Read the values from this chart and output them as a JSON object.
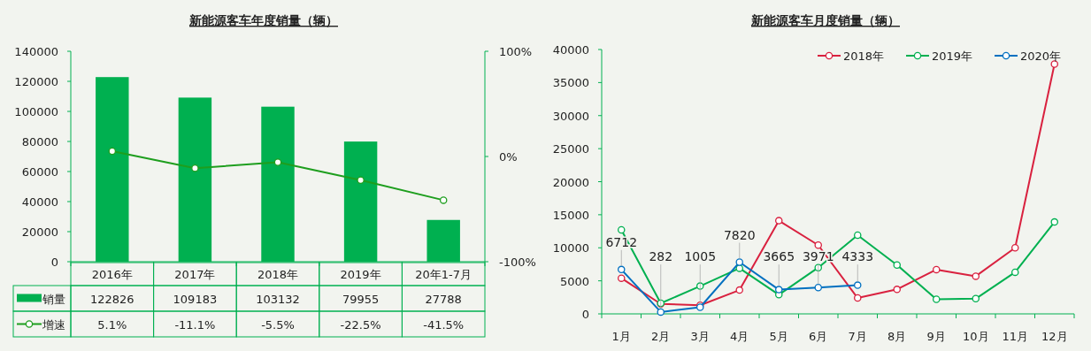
{
  "chart_data": [
    {
      "type": "bar",
      "title": "新能源客车年度销量（辆）",
      "categories": [
        "2016年",
        "2017年",
        "2018年",
        "2019年",
        "20年1-7月"
      ],
      "series": [
        {
          "name": "销量",
          "color": "#00b050",
          "values": [
            122826,
            109183,
            103132,
            79955,
            27788
          ]
        },
        {
          "name": "增速",
          "type": "line",
          "axis": "y2",
          "color": "#1e9e1e",
          "values": [
            5.1,
            -11.1,
            -5.5,
            -22.5,
            -41.5
          ],
          "value_labels": [
            "5.1%",
            "-11.1%",
            "-5.5%",
            "-22.5%",
            "-41.5%"
          ]
        }
      ],
      "ylim": [
        0,
        140000
      ],
      "yticks": [
        0,
        20000,
        40000,
        60000,
        80000,
        100000,
        120000,
        140000
      ],
      "y2lim": [
        -100,
        100
      ],
      "y2ticks": [
        {
          "value": -100,
          "label": "-100%"
        },
        {
          "value": 0,
          "label": "0%"
        },
        {
          "value": 100,
          "label": "100%"
        }
      ],
      "data_labels": true,
      "legend": "bottom left",
      "marker": "circle"
    },
    {
      "type": "line",
      "title": "新能源客车月度销量（辆）",
      "categories": [
        "1月",
        "2月",
        "3月",
        "4月",
        "5月",
        "6月",
        "7月",
        "8月",
        "9月",
        "10月",
        "11月",
        "12月"
      ],
      "series": [
        {
          "name": "2018年",
          "color": "#d9213f",
          "values": [
            5400,
            1500,
            1300,
            3600,
            14100,
            10400,
            2400,
            3700,
            6700,
            5700,
            10000,
            37800
          ]
        },
        {
          "name": "2019年",
          "color": "#00b050",
          "values": [
            12700,
            1600,
            4200,
            6900,
            2900,
            7000,
            11900,
            7400,
            2200,
            2300,
            6300,
            13900
          ]
        },
        {
          "name": "2020年",
          "color": "#0070c0",
          "values": [
            6712,
            282,
            1005,
            7820,
            3665,
            3971,
            4333,
            null,
            null,
            null,
            null,
            null
          ],
          "value_labels": [
            "6712",
            "282",
            "1005",
            "7820",
            "3665",
            "3971",
            "4333",
            null,
            null,
            null,
            null,
            null
          ]
        }
      ],
      "ylim": [
        0,
        40000
      ],
      "yticks": [
        0,
        5000,
        10000,
        15000,
        20000,
        25000,
        30000,
        35000,
        40000
      ],
      "legend": "top right",
      "marker": "circle"
    }
  ]
}
